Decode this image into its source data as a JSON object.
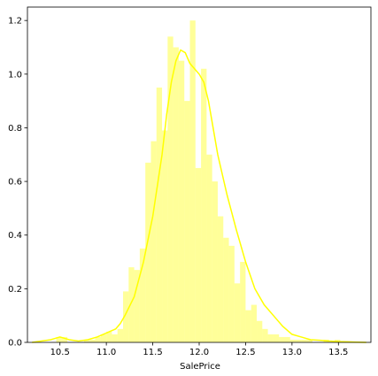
{
  "chart_data": {
    "type": "bar",
    "title": "",
    "xlabel": "SalePrice",
    "ylabel": "",
    "xlim": [
      10.15,
      13.85
    ],
    "ylim": [
      0,
      1.25
    ],
    "grid": false,
    "colors": {
      "bar": "#ffff00",
      "bar_opacity": 0.4,
      "kde": "#ffff00",
      "axes": "#000000",
      "background": "#ffffff"
    },
    "x_ticks": [
      10.5,
      11.0,
      11.5,
      12.0,
      12.5,
      13.0,
      13.5
    ],
    "x_tick_labels": [
      "10.5",
      "11.0",
      "11.5",
      "12.0",
      "12.5",
      "13.0",
      "13.5"
    ],
    "y_ticks": [
      0,
      0.2,
      0.4,
      0.6,
      0.8,
      1.0,
      1.2
    ],
    "y_tick_labels": [
      "0.0",
      "0.2",
      "0.4",
      "0.6",
      "0.8",
      "1.0",
      "1.2"
    ],
    "histogram": {
      "bin_edges": [
        10.46,
        10.52,
        10.58,
        10.64,
        10.7,
        10.76,
        10.82,
        10.88,
        10.94,
        11.0,
        11.06,
        11.12,
        11.18,
        11.24,
        11.3,
        11.36,
        11.42,
        11.48,
        11.54,
        11.6,
        11.66,
        11.72,
        11.78,
        11.84,
        11.9,
        11.96,
        12.02,
        12.08,
        12.14,
        12.2,
        12.26,
        12.32,
        12.38,
        12.44,
        12.5,
        12.56,
        12.62,
        12.68,
        12.74,
        12.8,
        12.86,
        12.92,
        12.98,
        13.04,
        13.1,
        13.16,
        13.22,
        13.28,
        13.34,
        13.4,
        13.46,
        13.52
      ],
      "density": [
        0.02,
        0.02,
        0.0,
        0.0,
        0.0,
        0.01,
        0.01,
        0.02,
        0.03,
        0.04,
        0.03,
        0.05,
        0.19,
        0.28,
        0.27,
        0.35,
        0.67,
        0.75,
        0.95,
        0.79,
        1.14,
        1.1,
        1.05,
        0.9,
        1.2,
        0.65,
        1.02,
        0.7,
        0.6,
        0.47,
        0.39,
        0.36,
        0.22,
        0.3,
        0.12,
        0.14,
        0.08,
        0.05,
        0.03,
        0.03,
        0.02,
        0.02,
        0.01,
        0.01,
        0.01,
        0.01,
        0.0,
        0.0,
        0.01,
        0.0,
        0.01
      ]
    },
    "kde": {
      "x": [
        10.2,
        10.3,
        10.4,
        10.45,
        10.5,
        10.55,
        10.6,
        10.7,
        10.8,
        10.9,
        11.0,
        11.1,
        11.15,
        11.2,
        11.3,
        11.4,
        11.5,
        11.6,
        11.65,
        11.7,
        11.75,
        11.8,
        11.85,
        11.9,
        11.95,
        12.0,
        12.05,
        12.1,
        12.15,
        12.2,
        12.3,
        12.4,
        12.5,
        12.6,
        12.7,
        12.8,
        12.9,
        13.0,
        13.1,
        13.2,
        13.3,
        13.4,
        13.5,
        13.6,
        13.7,
        13.8
      ],
      "y": [
        0.0,
        0.005,
        0.01,
        0.015,
        0.02,
        0.015,
        0.01,
        0.005,
        0.01,
        0.02,
        0.035,
        0.05,
        0.07,
        0.1,
        0.17,
        0.3,
        0.47,
        0.7,
        0.85,
        0.97,
        1.05,
        1.09,
        1.08,
        1.04,
        1.02,
        1.0,
        0.97,
        0.9,
        0.8,
        0.7,
        0.55,
        0.42,
        0.3,
        0.2,
        0.14,
        0.1,
        0.06,
        0.03,
        0.02,
        0.01,
        0.008,
        0.005,
        0.003,
        0.002,
        0.001,
        0.0
      ]
    }
  }
}
